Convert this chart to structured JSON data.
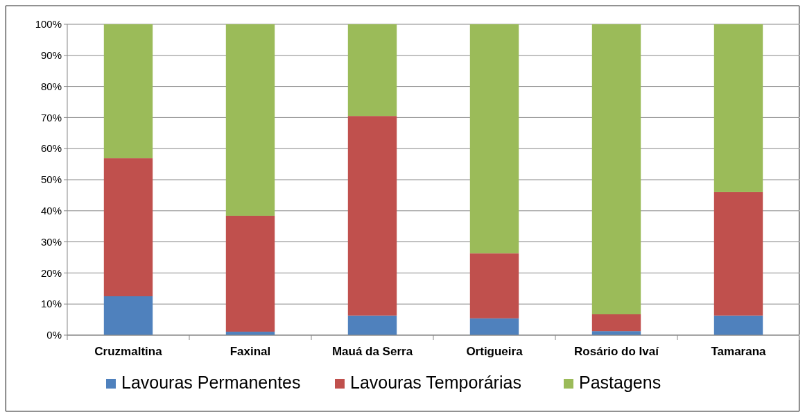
{
  "chart_data": {
    "type": "bar",
    "stacked": true,
    "categories": [
      "Cruzmaltina",
      "Faxinal",
      "Mauá da Serra",
      "Ortigueira",
      "Rosário do Ivaí",
      "Tamarana"
    ],
    "series": [
      {
        "name": "Lavouras Permanentes",
        "color": "#4f81bd",
        "values": [
          12.5,
          1.1,
          6.3,
          5.4,
          1.3,
          6.3
        ]
      },
      {
        "name": "Lavouras Temporárias",
        "color": "#c0504d",
        "values": [
          44.4,
          37.3,
          64.2,
          20.9,
          5.4,
          39.7
        ]
      },
      {
        "name": "Pastagens",
        "color": "#9bbb59",
        "values": [
          43.1,
          61.6,
          29.5,
          73.7,
          93.3,
          54.0
        ]
      }
    ],
    "ylim": [
      0,
      100
    ],
    "yticks": [
      {
        "value": 0,
        "label": "0%"
      },
      {
        "value": 10,
        "label": "10%"
      },
      {
        "value": 20,
        "label": "20%"
      },
      {
        "value": 30,
        "label": "30%"
      },
      {
        "value": 40,
        "label": "40%"
      },
      {
        "value": 50,
        "label": "50%"
      },
      {
        "value": 60,
        "label": "60%"
      },
      {
        "value": 70,
        "label": "70%"
      },
      {
        "value": 80,
        "label": "80%"
      },
      {
        "value": 90,
        "label": "90%"
      },
      {
        "value": 100,
        "label": "100%"
      }
    ],
    "grid": "y",
    "legend": "bottom"
  }
}
